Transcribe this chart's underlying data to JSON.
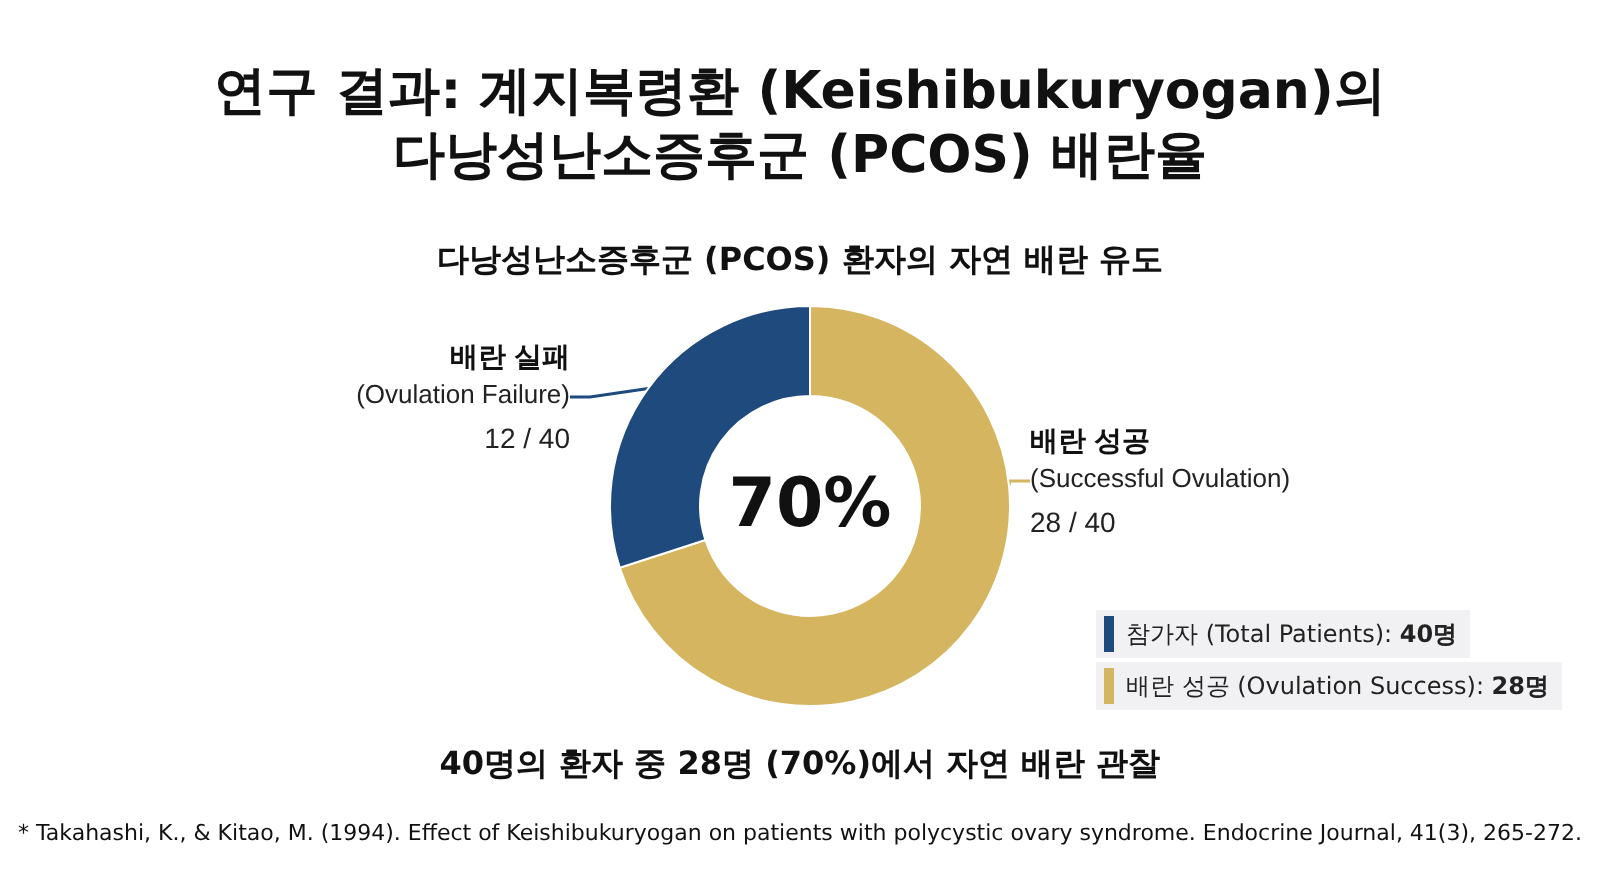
{
  "chart_data": {
    "type": "donut",
    "title": "연구 결과: 계지복령환 (Keishibukuryogan)의\n다낭성난소증후군 (PCOS) 배란율",
    "subtitle": "다낭성난소증후군 (PCOS) 환자의 자연 배란 유도",
    "categories": [
      "배란 성공\n(Successful Ovulation)",
      "배란 실패\n(Ovulation Failure)"
    ],
    "values": [
      28,
      12
    ],
    "value_labels": [
      "28 / 40",
      "12 / 40"
    ],
    "colors": [
      "#d6b560",
      "#1e4a7e"
    ],
    "legend": false,
    "annotations": [
      "70%",
      "참가자 (Total Patients): 40명",
      "배란 성공 (Ovulation Success): 28명",
      "40명의 환자 중 28명 (70%)에서 자연 배란 관찰",
      "* Takahashi, K., & Kitao, M. (1994). Effect of Keishibukuryogan on patients with polycystic ovary syndrome. Endocrine Journal, 41(3), 265-272."
    ]
  }
}
